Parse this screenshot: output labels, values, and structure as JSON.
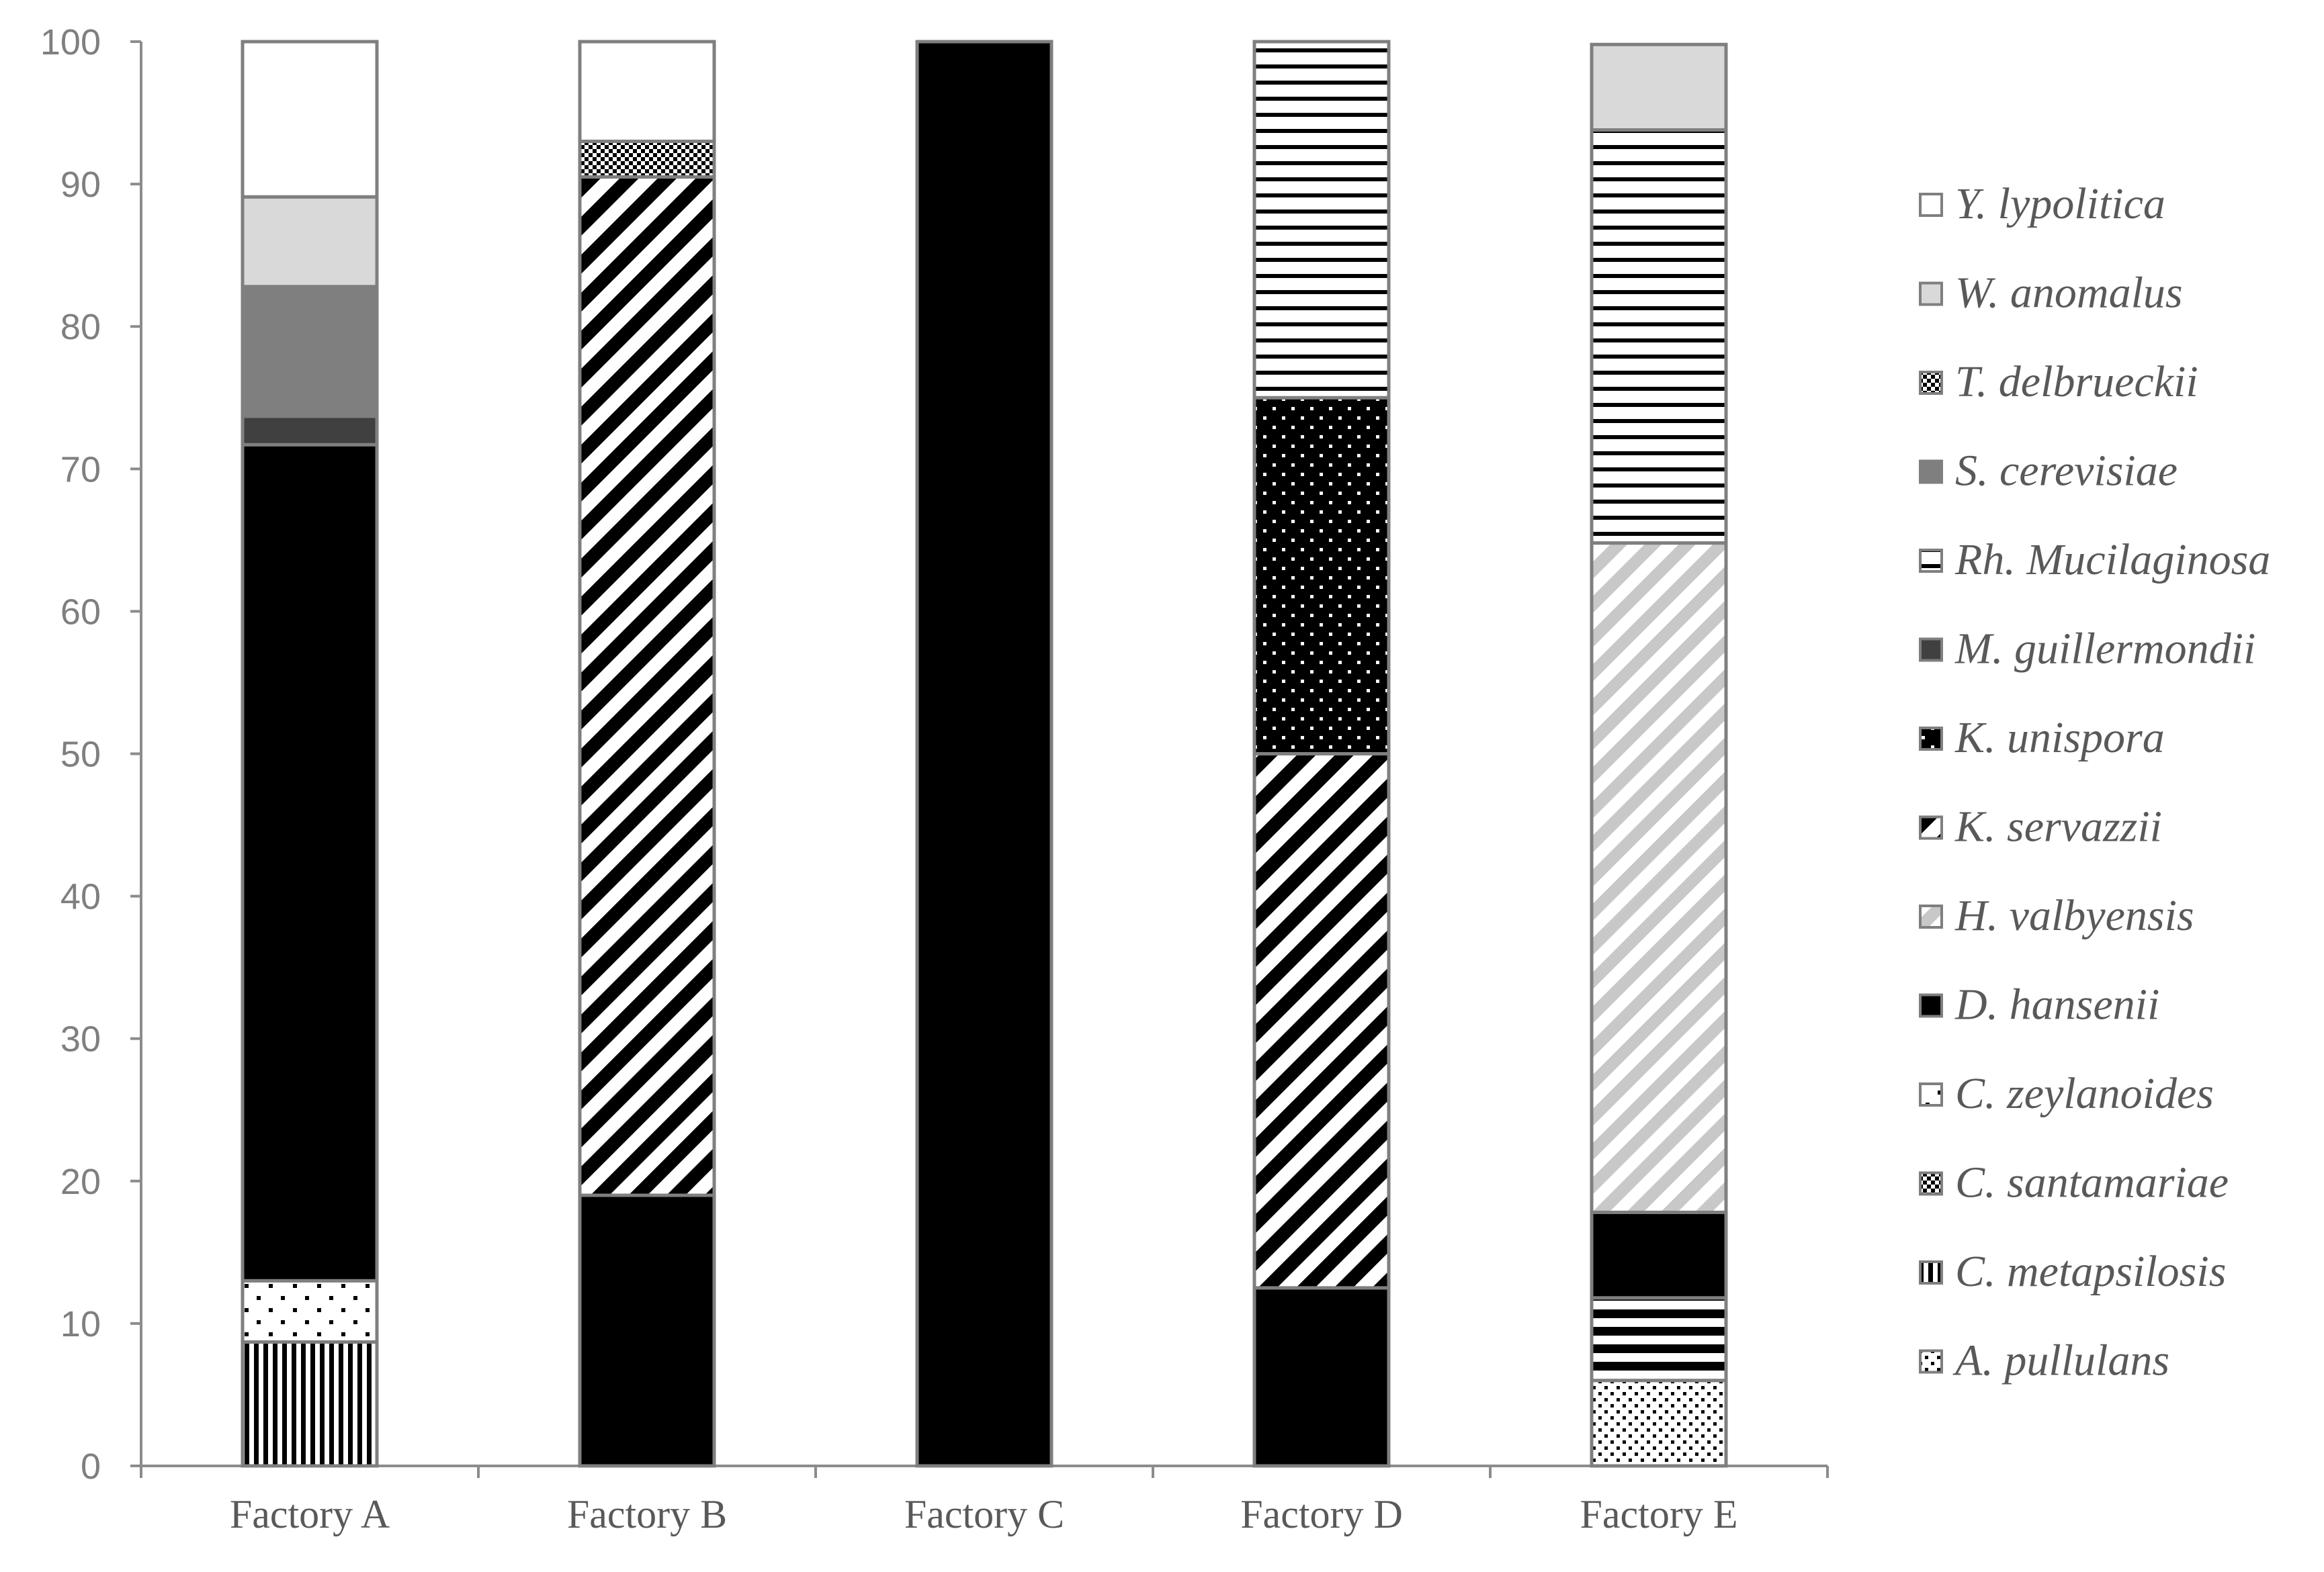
{
  "chart_data": {
    "type": "bar",
    "stacked": true,
    "title": "",
    "xlabel": "",
    "ylabel": "",
    "ylim": [
      0,
      100
    ],
    "yticks": [
      0,
      10,
      20,
      30,
      40,
      50,
      60,
      70,
      80,
      90,
      100
    ],
    "grid": false,
    "legend_position": "right",
    "categories": [
      "Factory A",
      "Factory B",
      "Factory C",
      "Factory D",
      "Factory E"
    ],
    "series": [
      {
        "name": "A. pullulans",
        "pattern": "dots-small",
        "values": [
          0,
          0,
          0,
          0,
          6
        ]
      },
      {
        "name": "C. metapsilosis",
        "pattern": "vertical-lines",
        "values": [
          8.7,
          0,
          0,
          0,
          0
        ]
      },
      {
        "name": "C. santamariae",
        "pattern": "checker",
        "values": [
          0,
          0,
          0,
          0,
          0
        ]
      },
      {
        "name": "C. zeylanoides",
        "pattern": "dots-sparse",
        "values": [
          4.3,
          0,
          0,
          0,
          0
        ]
      },
      {
        "name": "D. hansenii",
        "pattern": "solid-black",
        "values": [
          58.7,
          19,
          100,
          12.5,
          0
        ]
      },
      {
        "name": "H. valbyensis",
        "pattern": "diagonal-light",
        "values": [
          0,
          0,
          0,
          0,
          47
        ]
      },
      {
        "name": "K. servazzii",
        "pattern": "diagonal-bold",
        "values": [
          0,
          71.5,
          0,
          37.5,
          0
        ]
      },
      {
        "name": "K. unispora",
        "pattern": "dots-on-black",
        "values": [
          0,
          0,
          0,
          25,
          0
        ]
      },
      {
        "name": "M. guillermondii",
        "pattern": "solid-dark-gray",
        "values": [
          2,
          0,
          0,
          0,
          0
        ]
      },
      {
        "name": "Rh. Mucilaginosa",
        "pattern": "horizontal-lines",
        "values": [
          0,
          0,
          0,
          25,
          29
        ]
      },
      {
        "name": "S. cerevisiae",
        "pattern": "solid-gray",
        "values": [
          9.1,
          0,
          0,
          0,
          0
        ]
      },
      {
        "name": "T. delbrueckii",
        "pattern": "checker",
        "values": [
          0,
          2.5,
          0,
          0,
          0
        ]
      },
      {
        "name": "W. anomalus",
        "pattern": "solid-light-gray",
        "values": [
          6.3,
          0,
          0,
          0,
          6
        ]
      },
      {
        "name": "Y. lypolitica",
        "pattern": "solid-white",
        "values": [
          10.9,
          7,
          0,
          0,
          0
        ]
      }
    ],
    "extra_segments": [
      {
        "category": "Factory E",
        "pattern": "horizontal-bold",
        "from": 6,
        "to": 11.8
      },
      {
        "category": "Factory E",
        "pattern": "solid-black",
        "from": 11.8,
        "to": 17.8
      }
    ],
    "legend_order": [
      "Y. lypolitica",
      "W. anomalus",
      "T. delbrueckii",
      "S. cerevisiae",
      "Rh. Mucilaginosa",
      "M. guillermondii",
      "K. unispora",
      "K. servazzii",
      "H. valbyensis",
      "D. hansenii",
      "C. zeylanoides",
      "C. santamariae",
      "C. metapsilosis",
      "A. pullulans"
    ],
    "colors": {
      "axis": "#8c8c8c",
      "bar_outline": "#7f7f7f",
      "tick_text": "#7f7f7f",
      "label_text": "#595959"
    }
  }
}
